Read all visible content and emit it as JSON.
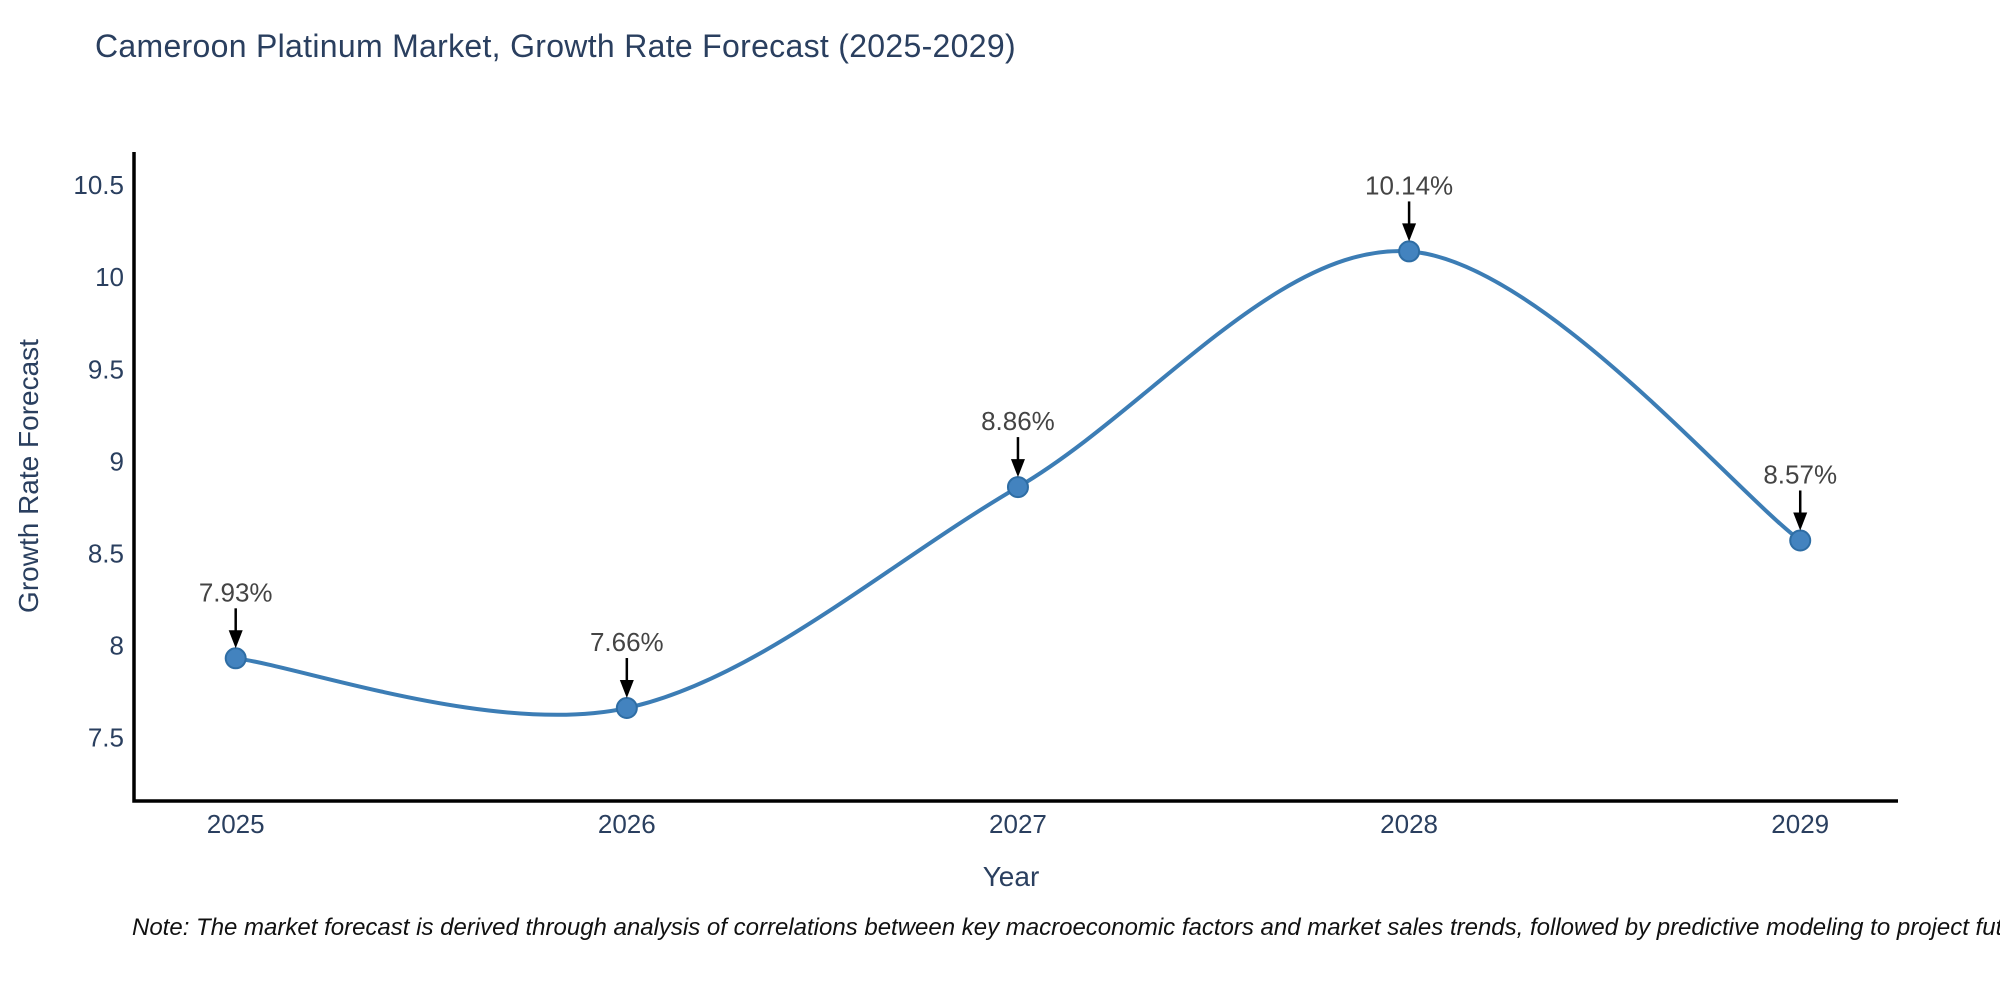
{
  "title": "Cameroon Platinum Market, Growth Rate Forecast (2025-2029)",
  "note": "Note: The market forecast is derived through analysis of correlations between key macroeconomic factors and market sales trends, followed by predictive modeling to project future sal",
  "chart_data": {
    "type": "line",
    "line_shape": "spline",
    "title": "Cameroon Platinum Market, Growth Rate Forecast (2025-2029)",
    "xlabel": "Year",
    "ylabel": "Growth Rate Forecast",
    "x": [
      2025,
      2026,
      2027,
      2028,
      2029
    ],
    "series": [
      {
        "name": "Growth Rate Forecast",
        "values": [
          7.93,
          7.66,
          8.86,
          10.14,
          8.57
        ]
      }
    ],
    "point_labels": [
      "7.93%",
      "7.66%",
      "8.86%",
      "10.14%",
      "8.57%"
    ],
    "x_ticks": [
      "2025",
      "2026",
      "2027",
      "2028",
      "2029"
    ],
    "y_ticks": [
      7.5,
      8,
      8.5,
      9,
      9.5,
      10,
      10.5
    ],
    "xlim": [
      2024.74,
      2029.25
    ],
    "ylim": [
      7.155,
      10.68
    ],
    "grid": false,
    "legend": "none",
    "colors": {
      "line": "#3c7db5",
      "marker_fill": "#4383bf",
      "marker_edge": "#2e6da4",
      "axis": "#000000",
      "tick": "#2a3f5f",
      "title": "#2a3f5f",
      "annotation": "#444444",
      "arrow": "#000000"
    }
  }
}
